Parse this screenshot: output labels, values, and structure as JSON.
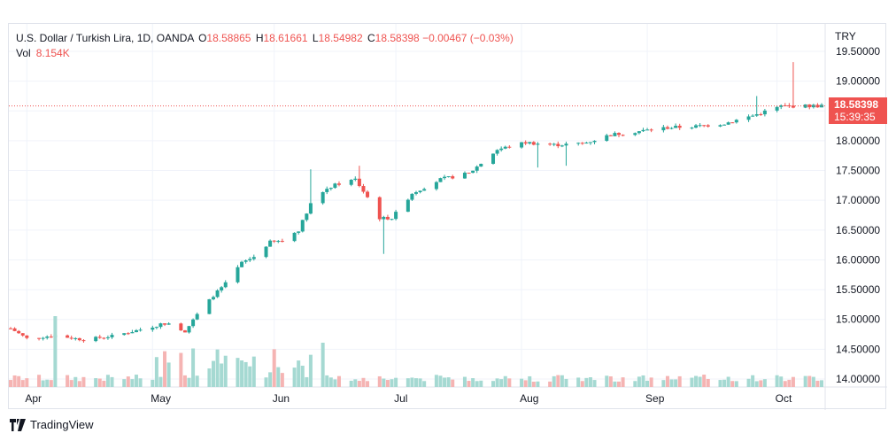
{
  "legend": {
    "symbol": "U.S. Dollar / Turkish Lira, 1D, OANDA",
    "open_label": "O",
    "open": "18.58865",
    "high_label": "H",
    "high": "18.61661",
    "low_label": "L",
    "low": "18.54982",
    "close_label": "C",
    "close": "18.58398",
    "change": "−0.00467 (−0.03%)",
    "vol_label": "Vol",
    "vol": "8.154K"
  },
  "price_axis": {
    "currency": "TRY"
  },
  "last_price": {
    "price": "18.58398",
    "countdown": "15:39:35"
  },
  "brand": {
    "name": "TradingView"
  },
  "colors": {
    "up": "#26a69a",
    "down": "#ef5350",
    "up_volume": "#a5d9d2",
    "down_volume": "#f5b4b3",
    "grid": "#f0f3fa",
    "axis_text": "#131722"
  },
  "chart_data": {
    "type": "candlestick",
    "title": "U.S. Dollar / Turkish Lira, 1D, OANDA",
    "x_ticks": [
      "Apr",
      "May",
      "Jun",
      "Jul",
      "Aug",
      "Sep",
      "Oct"
    ],
    "y_ticks": [
      "19.50000",
      "19.00000",
      "18.50000",
      "18.00000",
      "17.50000",
      "17.00000",
      "16.50000",
      "16.00000",
      "15.50000",
      "15.00000",
      "14.50000",
      "14.00000"
    ],
    "ylim": [
      14.0,
      19.5
    ],
    "grid": true,
    "volume_pane": true,
    "close_series": [
      {
        "date": "2022-03-28",
        "close": 14.85
      },
      {
        "date": "2022-04-01",
        "close": 14.68
      },
      {
        "date": "2022-04-08",
        "close": 14.73
      },
      {
        "date": "2022-04-15",
        "close": 14.66
      },
      {
        "date": "2022-04-22",
        "close": 14.72
      },
      {
        "date": "2022-04-29",
        "close": 14.83
      },
      {
        "date": "2022-05-06",
        "close": 14.95
      },
      {
        "date": "2022-05-10",
        "close": 14.8
      },
      {
        "date": "2022-05-13",
        "close": 15.08
      },
      {
        "date": "2022-05-17",
        "close": 15.4
      },
      {
        "date": "2022-05-20",
        "close": 15.6
      },
      {
        "date": "2022-05-24",
        "close": 15.95
      },
      {
        "date": "2022-05-27",
        "close": 16.05
      },
      {
        "date": "2022-05-31",
        "close": 16.3
      },
      {
        "date": "2022-06-03",
        "close": 16.32
      },
      {
        "date": "2022-06-07",
        "close": 16.5
      },
      {
        "date": "2022-06-10",
        "close": 16.95
      },
      {
        "date": "2022-06-14",
        "close": 17.2
      },
      {
        "date": "2022-06-17",
        "close": 17.28
      },
      {
        "date": "2022-06-21",
        "close": 17.35
      },
      {
        "date": "2022-06-24",
        "close": 17.05
      },
      {
        "date": "2022-06-27",
        "close": 16.7
      },
      {
        "date": "2022-06-30",
        "close": 16.7
      },
      {
        "date": "2022-07-05",
        "close": 17.12
      },
      {
        "date": "2022-07-12",
        "close": 17.35
      },
      {
        "date": "2022-07-19",
        "close": 17.45
      },
      {
        "date": "2022-07-26",
        "close": 17.85
      },
      {
        "date": "2022-08-02",
        "close": 17.97
      },
      {
        "date": "2022-08-09",
        "close": 17.93
      },
      {
        "date": "2022-08-16",
        "close": 17.95
      },
      {
        "date": "2022-08-23",
        "close": 18.1
      },
      {
        "date": "2022-08-30",
        "close": 18.16
      },
      {
        "date": "2022-09-06",
        "close": 18.22
      },
      {
        "date": "2022-09-13",
        "close": 18.24
      },
      {
        "date": "2022-09-20",
        "close": 18.29
      },
      {
        "date": "2022-09-27",
        "close": 18.42
      },
      {
        "date": "2022-10-04",
        "close": 18.58
      },
      {
        "date": "2022-10-11",
        "close": 18.58398
      }
    ],
    "notable_wicks": [
      {
        "date": "2022-06-10",
        "high": 17.52
      },
      {
        "date": "2022-06-22",
        "high": 17.58
      },
      {
        "date": "2022-06-28",
        "low": 16.1
      },
      {
        "date": "2022-08-05",
        "low": 17.55
      },
      {
        "date": "2022-08-12",
        "low": 17.58
      },
      {
        "date": "2022-09-28",
        "high": 18.75
      },
      {
        "date": "2022-10-07",
        "high": 19.32
      }
    ],
    "last_price": 18.58398
  }
}
